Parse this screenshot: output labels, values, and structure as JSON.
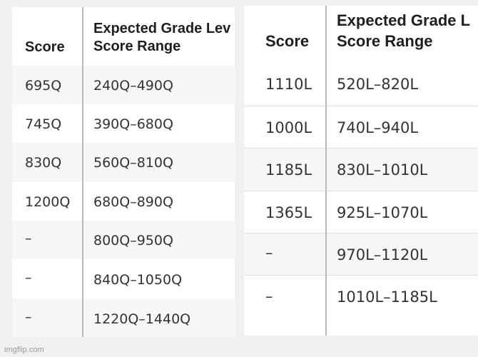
{
  "left_table": {
    "header": {
      "col1": "Score",
      "col2_line1": "Expected Grade Lev",
      "col2_line2": "Score Range"
    },
    "rows": [
      {
        "score": "695Q",
        "range": "240Q–490Q"
      },
      {
        "score": "745Q",
        "range": "390Q–680Q"
      },
      {
        "score": "830Q",
        "range": "560Q–810Q"
      },
      {
        "score": "1200Q",
        "range": "680Q–890Q"
      },
      {
        "score": "–",
        "range": "800Q–950Q"
      },
      {
        "score": "–",
        "range": "840Q–1050Q"
      },
      {
        "score": "–",
        "range": "1220Q–1440Q"
      }
    ]
  },
  "right_table": {
    "header": {
      "col1": "Score",
      "col2_line1": "Expected Grade L",
      "col2_line2": "Score Range"
    },
    "rows": [
      {
        "score": "1110L",
        "range": "520L–820L"
      },
      {
        "score": "1000L",
        "range": "740L–940L"
      },
      {
        "score": "1185L",
        "range": "830L–1010L"
      },
      {
        "score": "1365L",
        "range": "925L–1070L"
      },
      {
        "score": "–",
        "range": "970L–1120L"
      },
      {
        "score": "–",
        "range": "1010L–1185L"
      }
    ]
  },
  "watermark": "imgflip.com",
  "colors": {
    "background": "#f1f1f1",
    "panel": "#ffffff",
    "stripe": "#f7f7f7",
    "divider": "#b9b9b9"
  }
}
